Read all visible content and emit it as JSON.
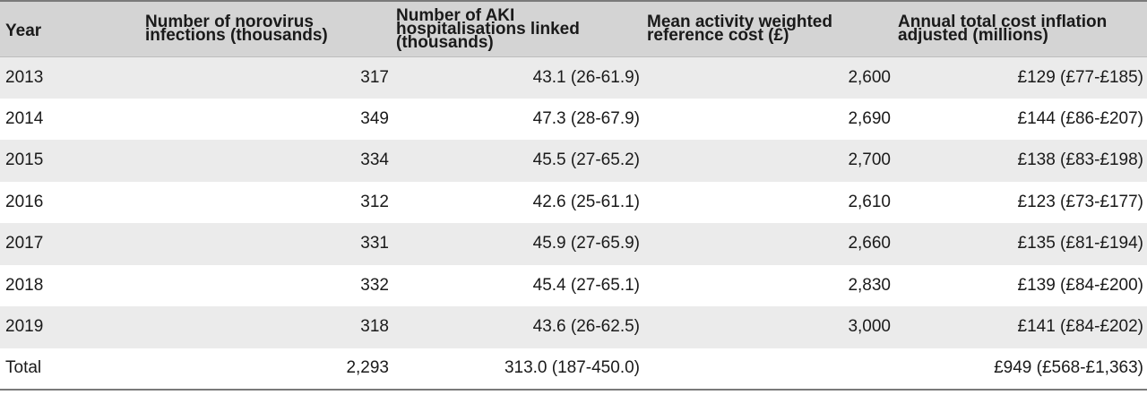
{
  "table": {
    "headers": [
      "Year",
      "Number of norovirus infections (thousands)",
      "Number of AKI hospitalisations linked (thousands)",
      "Mean activity weighted reference cost (£)",
      "Annual total cost inflation adjusted (millions)"
    ],
    "rows": [
      [
        "2013",
        "317",
        "43.1 (26-61.9)",
        "2,600",
        "£129 (£77-£185)"
      ],
      [
        "2014",
        "349",
        "47.3 (28-67.9)",
        "2,690",
        "£144 (£86-£207)"
      ],
      [
        "2015",
        "334",
        "45.5 (27-65.2)",
        "2,700",
        "£138 (£83-£198)"
      ],
      [
        "2016",
        "312",
        "42.6 (25-61.1)",
        "2,610",
        "£123 (£73-£177)"
      ],
      [
        "2017",
        "331",
        "45.9 (27-65.9)",
        "2,660",
        "£135 (£81-£194)"
      ],
      [
        "2018",
        "332",
        "45.4 (27-65.1)",
        "2,830",
        "£139 (£84-£200)"
      ],
      [
        "2019",
        "318",
        "43.6 (26-62.5)",
        "3,000",
        "£141 (£84-£202)"
      ],
      [
        "Total",
        "2,293",
        "313.0 (187-450.0)",
        "",
        "£949 (£568-£1,363)"
      ]
    ]
  }
}
